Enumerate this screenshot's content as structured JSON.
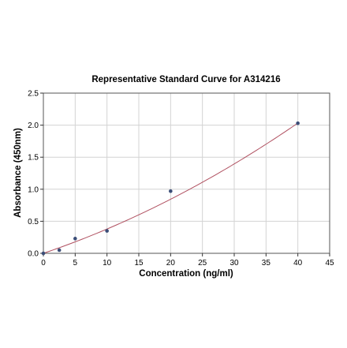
{
  "chart_data": {
    "type": "scatter",
    "title": "Representative Standard Curve for A314216",
    "xlabel": "Concentration (ng/ml)",
    "ylabel": "Absorbance (450nm)",
    "xlim": [
      0,
      45
    ],
    "ylim": [
      0,
      2.5
    ],
    "xticks": [
      0,
      5,
      10,
      15,
      20,
      25,
      30,
      35,
      40,
      45
    ],
    "yticks": [
      0.0,
      0.5,
      1.0,
      1.5,
      2.0,
      2.5
    ],
    "xtick_labels": [
      "0",
      "5",
      "10",
      "15",
      "20",
      "25",
      "30",
      "35",
      "40",
      "45"
    ],
    "ytick_labels": [
      "0.0",
      "0.5",
      "1.0",
      "1.5",
      "2.0",
      "2.5"
    ],
    "grid": true,
    "points": [
      {
        "x": 0,
        "y": 0.0
      },
      {
        "x": 2.5,
        "y": 0.05
      },
      {
        "x": 5,
        "y": 0.23
      },
      {
        "x": 10,
        "y": 0.35
      },
      {
        "x": 20,
        "y": 0.97
      },
      {
        "x": 40,
        "y": 2.03
      }
    ],
    "fit_curve": {
      "type": "polynomial",
      "x_range": [
        0,
        40
      ],
      "coefficients": [
        0.0,
        0.0336,
        0.00043
      ]
    },
    "colors": {
      "points": "#3b4e78",
      "curve": "#b05060"
    }
  }
}
